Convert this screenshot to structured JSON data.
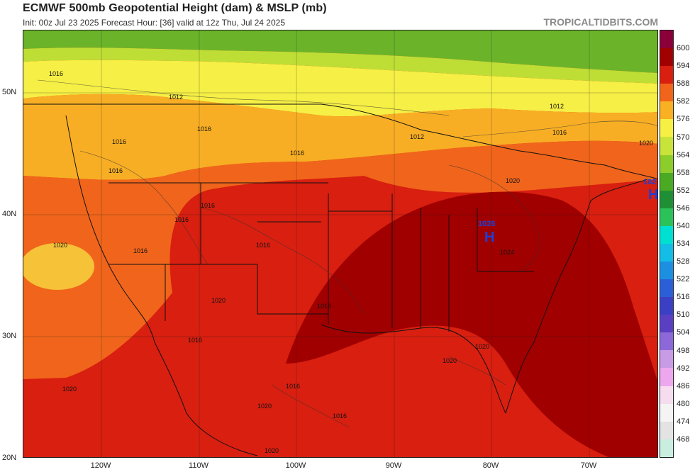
{
  "header": {
    "title": "ECMWF 500mb Geopotential Height (dam) & MSLP (mb)",
    "subtitle": "Init: 00z Jul 23 2025   Forecast Hour: [36]   valid at 12z Thu, Jul 24 2025",
    "watermark": "TROPICALTIDBITS.COM"
  },
  "axes": {
    "latitude_labels": [
      "50N",
      "40N",
      "30N",
      "20N"
    ],
    "longitude_labels": [
      "120W",
      "110W",
      "100W",
      "90W",
      "80W",
      "70W"
    ]
  },
  "colorbar": {
    "levels": [
      "600",
      "594",
      "588",
      "582",
      "576",
      "570",
      "564",
      "558",
      "552",
      "546",
      "540",
      "534",
      "528",
      "522",
      "516",
      "510",
      "504",
      "498",
      "492",
      "486",
      "480",
      "474",
      "468"
    ],
    "colors": [
      "#8b0038",
      "#a10000",
      "#d81f10",
      "#f0651b",
      "#f9b022",
      "#f5f043",
      "#c8e43a",
      "#8ccd2c",
      "#4aaa23",
      "#1f8f36",
      "#2bc25a",
      "#00e0d2",
      "#14bde6",
      "#1d8fe0",
      "#2a5fd8",
      "#3a3fc4",
      "#5a3fc2",
      "#8c68d8",
      "#c79be6",
      "#eda7ee",
      "#f6dcef",
      "#f4f4f4",
      "#e3e3e3",
      "#c9eee0"
    ]
  },
  "map_labels": {
    "isobars": [
      "1016",
      "1012",
      "1016",
      "1016",
      "1016",
      "1016",
      "1016",
      "1020",
      "1016",
      "1016",
      "1020",
      "1016",
      "1016",
      "1012",
      "1020",
      "1024",
      "1012",
      "1016",
      "1020",
      "1016",
      "1016",
      "1020",
      "1016",
      "1020",
      "1020",
      "1020",
      "1020"
    ],
    "highs": [
      {
        "letter": "H",
        "value": "1026"
      },
      {
        "letter": "H",
        "value": "102"
      }
    ]
  }
}
